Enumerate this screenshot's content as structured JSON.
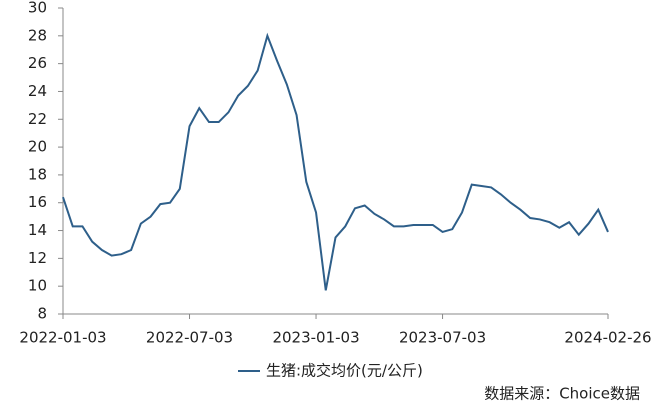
{
  "chart_data": {
    "type": "line",
    "categories": [
      "2022-01-03",
      null,
      null,
      null,
      null,
      null,
      null,
      null,
      null,
      null,
      null,
      null,
      null,
      "2022-07-03",
      null,
      null,
      null,
      null,
      null,
      null,
      null,
      null,
      null,
      null,
      null,
      null,
      "2023-01-03",
      null,
      null,
      null,
      null,
      null,
      null,
      null,
      null,
      null,
      null,
      null,
      null,
      "2023-07-03",
      null,
      null,
      null,
      null,
      null,
      null,
      null,
      null,
      null,
      null,
      null,
      null,
      null,
      null,
      null,
      null,
      "2024-02-26"
    ],
    "series": [
      {
        "name": "生猪:成交均价(元/公斤)",
        "color": "#2e5f8a",
        "values": [
          16.4,
          14.3,
          14.3,
          13.2,
          12.6,
          12.2,
          12.3,
          12.6,
          14.5,
          15.0,
          15.9,
          16.0,
          17.0,
          21.5,
          22.8,
          21.8,
          21.8,
          22.5,
          23.7,
          24.4,
          25.5,
          28.0,
          26.2,
          24.5,
          22.3,
          17.5,
          15.3,
          9.7,
          13.5,
          14.3,
          15.6,
          15.8,
          15.2,
          14.8,
          14.3,
          14.3,
          14.4,
          14.4,
          14.4,
          13.9,
          14.1,
          15.3,
          17.3,
          17.2,
          17.1,
          16.6,
          16.0,
          15.5,
          14.9,
          14.8,
          14.6,
          14.2,
          14.6,
          13.7,
          14.5,
          15.5,
          13.9
        ]
      }
    ],
    "ylim": [
      8,
      30
    ],
    "yticks": [
      8,
      10,
      12,
      14,
      16,
      18,
      20,
      22,
      24,
      26,
      28,
      30
    ],
    "legend": "bottom",
    "source": "数据来源：Choice数据"
  }
}
